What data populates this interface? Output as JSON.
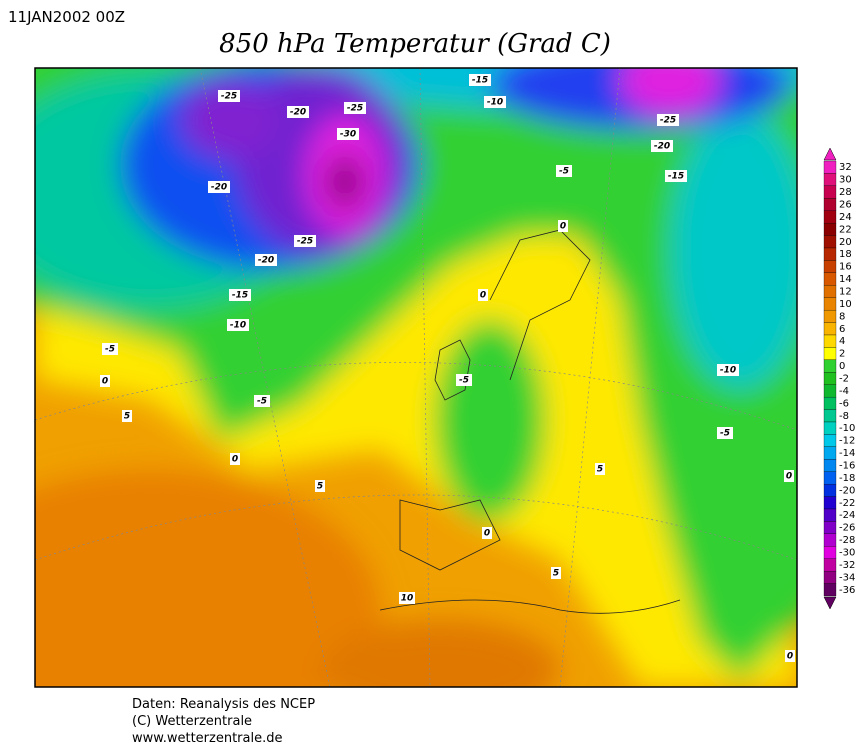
{
  "header": {
    "date": "11JAN2002 00Z",
    "title": "850 hPa Temperatur (Grad C)"
  },
  "colorbar": {
    "levels": [
      32,
      30,
      28,
      26,
      24,
      22,
      20,
      18,
      16,
      14,
      12,
      10,
      8,
      6,
      4,
      2,
      0,
      -2,
      -4,
      -6,
      -8,
      -10,
      -12,
      -14,
      -16,
      -18,
      -20,
      -22,
      -24,
      -26,
      -28,
      -30,
      -32,
      -34,
      -36
    ],
    "colors": [
      "#f020c0",
      "#e0107a",
      "#c80050",
      "#b00030",
      "#a00010",
      "#8a0000",
      "#a01000",
      "#b82800",
      "#c84000",
      "#d85800",
      "#e07000",
      "#e88400",
      "#f09800",
      "#f8b400",
      "#ffd800",
      "#ffff00",
      "#30d030",
      "#20c020",
      "#10b830",
      "#00c060",
      "#00c890",
      "#00d0c0",
      "#00c8e8",
      "#00a8f0",
      "#0088f0",
      "#0060f0",
      "#0030e0",
      "#2000d0",
      "#5000c8",
      "#8000c8",
      "#b000d0",
      "#e000e0",
      "#c000a0",
      "#900080",
      "#600060"
    ]
  },
  "contour_labels": [
    -25,
    -20,
    -25,
    -30,
    -20,
    -25,
    -20,
    -15,
    -10,
    -5,
    0,
    5,
    -5,
    0,
    5,
    -15,
    -10,
    -25,
    -20,
    -15,
    -5,
    0,
    0,
    -5,
    5,
    -10,
    -5,
    0,
    5,
    10,
    0,
    0
  ],
  "footer": {
    "lines": [
      "Daten: Reanalysis des NCEP",
      "(C) Wetterzentrale",
      "www.wetterzentrale.de"
    ]
  }
}
